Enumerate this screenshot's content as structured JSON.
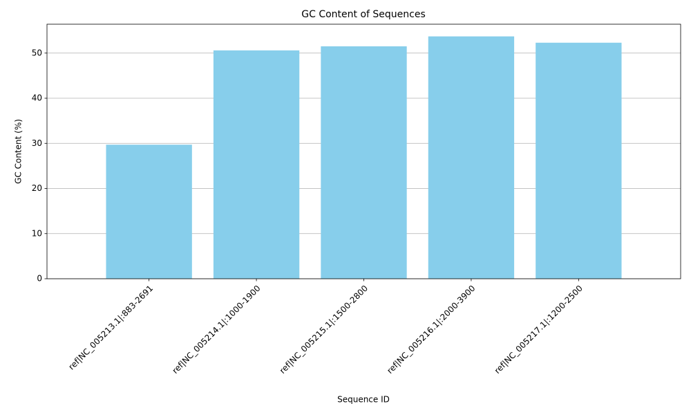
{
  "chart_data": {
    "type": "bar",
    "title": "GC Content of Sequences",
    "x_label": "Sequence ID",
    "y_label": "GC Content (%)",
    "categories": [
      "ref|NC_005213.1|:883-2691",
      "ref|NC_005214.1|:1000-1900",
      "ref|NC_005215.1|:1500-2800",
      "ref|NC_005216.1|:2000-3900",
      "ref|NC_005217.1|:1200-2500"
    ],
    "values": [
      29.7,
      50.6,
      51.5,
      53.7,
      52.3
    ],
    "color": "#87ceeb",
    "ylim": [
      0,
      56.4
    ],
    "yticks": [
      0,
      10,
      20,
      30,
      40,
      50
    ],
    "grid": true
  }
}
